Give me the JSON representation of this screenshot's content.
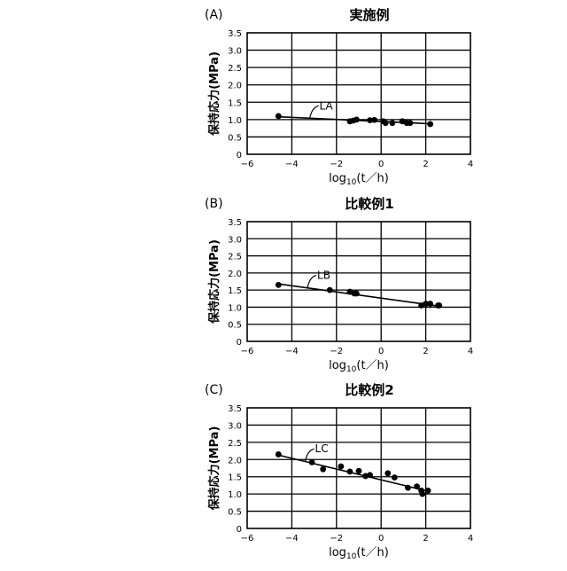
{
  "figure": {
    "colors": {
      "ink": "#000000",
      "background": "#ffffff"
    }
  },
  "chart_data": [
    {
      "panel": "(A)",
      "title": "実施例",
      "type": "scatter",
      "ylabel": "保持応力(MPa)",
      "xlabel": {
        "prefix": "log",
        "subscript": "10",
        "suffix": "(t／h)"
      },
      "xlim": [
        -6,
        4
      ],
      "ylim": [
        0,
        3.5
      ],
      "x_ticks": [
        -6,
        -4,
        -2,
        0,
        2,
        4
      ],
      "y_ticks": [
        0,
        0.5,
        1.0,
        1.5,
        2.0,
        2.5,
        3.0,
        3.5
      ],
      "y_tick_labels": [
        "0",
        "0.5",
        "1.0",
        "1.5",
        "2.0",
        "2.5",
        "3.0",
        "3.5"
      ],
      "grid": true,
      "series": [
        {
          "points": [
            [
              -4.6,
              1.1
            ],
            [
              -1.4,
              0.95
            ],
            [
              -1.25,
              0.97
            ],
            [
              -1.1,
              1.0
            ],
            [
              -0.5,
              0.98
            ],
            [
              -0.3,
              0.99
            ],
            [
              0.1,
              0.95
            ],
            [
              0.2,
              0.9
            ],
            [
              0.5,
              0.9
            ],
            [
              0.95,
              0.95
            ],
            [
              1.15,
              0.9
            ],
            [
              1.3,
              0.9
            ],
            [
              2.2,
              0.87
            ]
          ],
          "fit": {
            "x": [
              -4.6,
              2.2
            ],
            "y": [
              1.08,
              0.88
            ]
          },
          "label": "LA",
          "label_anchor": [
            -3.2,
            1.04
          ]
        }
      ]
    },
    {
      "panel": "(B)",
      "title": "比較例1",
      "type": "scatter",
      "ylabel": "保持応力(MPa)",
      "xlabel": {
        "prefix": "log",
        "subscript": "10",
        "suffix": "(t／h)"
      },
      "xlim": [
        -6,
        4
      ],
      "ylim": [
        0,
        3.5
      ],
      "x_ticks": [
        -6,
        -4,
        -2,
        0,
        2,
        4
      ],
      "y_ticks": [
        0,
        0.5,
        1.0,
        1.5,
        2.0,
        2.5,
        3.0,
        3.5
      ],
      "y_tick_labels": [
        "0",
        "0.5",
        "1.0",
        "1.5",
        "2.0",
        "2.5",
        "3.0",
        "3.5"
      ],
      "grid": true,
      "series": [
        {
          "points": [
            [
              -4.6,
              1.65
            ],
            [
              -2.3,
              1.5
            ],
            [
              -1.4,
              1.45
            ],
            [
              -1.2,
              1.4
            ],
            [
              -1.1,
              1.4
            ],
            [
              1.8,
              1.05
            ],
            [
              2.0,
              1.1
            ],
            [
              2.2,
              1.1
            ],
            [
              2.55,
              1.05
            ],
            [
              2.6,
              1.05
            ]
          ],
          "fit": {
            "x": [
              -4.6,
              2.6
            ],
            "y": [
              1.68,
              1.03
            ]
          },
          "label": "LB",
          "label_anchor": [
            -3.3,
            1.57
          ]
        }
      ]
    },
    {
      "panel": "(C)",
      "title": "比較例2",
      "type": "scatter",
      "ylabel": "保持応力(MPa)",
      "xlabel": {
        "prefix": "log",
        "subscript": "10",
        "suffix": "(t／h)"
      },
      "xlim": [
        -6,
        4
      ],
      "ylim": [
        0,
        3.5
      ],
      "x_ticks": [
        -6,
        -4,
        -2,
        0,
        2,
        4
      ],
      "y_ticks": [
        0,
        0.5,
        1.0,
        1.5,
        2.0,
        2.5,
        3.0,
        3.5
      ],
      "y_tick_labels": [
        "0",
        "0.5",
        "1.0",
        "1.5",
        "2.0",
        "2.5",
        "3.0",
        "3.5"
      ],
      "grid": true,
      "series": [
        {
          "points": [
            [
              -4.6,
              2.15
            ],
            [
              -3.1,
              1.92
            ],
            [
              -2.6,
              1.72
            ],
            [
              -1.8,
              1.8
            ],
            [
              -1.4,
              1.65
            ],
            [
              -1.0,
              1.67
            ],
            [
              -0.7,
              1.52
            ],
            [
              -0.5,
              1.55
            ],
            [
              0.3,
              1.6
            ],
            [
              0.6,
              1.48
            ],
            [
              1.2,
              1.18
            ],
            [
              1.6,
              1.22
            ],
            [
              1.8,
              1.1
            ],
            [
              1.85,
              1.0
            ],
            [
              2.1,
              1.1
            ]
          ],
          "fit": {
            "x": [
              -4.6,
              2.1
            ],
            "y": [
              2.13,
              1.08
            ]
          },
          "label": "LC",
          "label_anchor": [
            -3.4,
            1.95
          ]
        }
      ]
    }
  ]
}
